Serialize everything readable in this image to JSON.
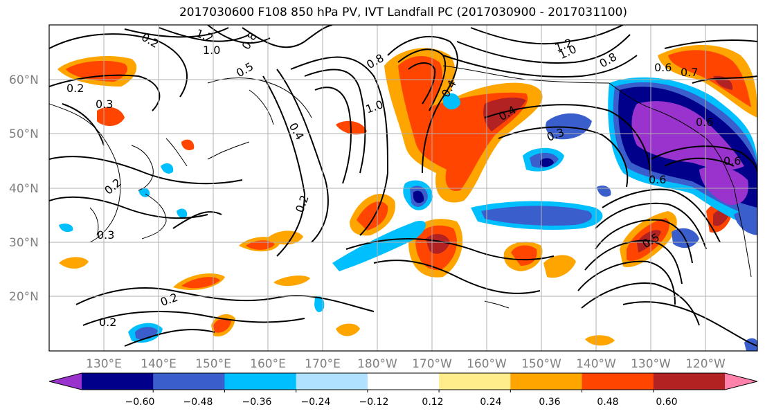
{
  "title": "2017030600 F108 850 hPa PV, IVT Landfall PC (2017030900 - 2017031100)",
  "map": {
    "lon_labels": [
      "130°E",
      "140°E",
      "150°E",
      "160°E",
      "170°E",
      "180°W",
      "170°W",
      "160°W",
      "150°W",
      "140°W",
      "130°W",
      "120°W"
    ],
    "lat_labels": [
      "20°N",
      "30°N",
      "40°N",
      "50°N",
      "60°N"
    ],
    "contour_labels": [
      "0.2",
      "0.2",
      "0.2",
      "0.3",
      "0.3",
      "0.4",
      "0.4",
      "0.5",
      "0.6",
      "0.6",
      "0.8",
      "0.8",
      "1.0",
      "1.0",
      "1.0",
      "1.2",
      "1.2",
      "0.3",
      "0.2",
      "0.6",
      "0.7",
      "0.6",
      "0.2",
      "0.8",
      "0.2",
      "0.5",
      "0.4"
    ]
  },
  "colorbar": {
    "colors": [
      "#9a32cd",
      "#00008b",
      "#3a5fcd",
      "#00bfff",
      "#b0e2ff",
      "#ffffff",
      "#ffec8b",
      "#ffa500",
      "#ff4500",
      "#b22222",
      "#ff82ab"
    ],
    "tick_labels": [
      "−0.60",
      "−0.48",
      "−0.36",
      "−0.24",
      "−0.12",
      "0.12",
      "0.24",
      "0.36",
      "0.48",
      "0.60"
    ]
  }
}
